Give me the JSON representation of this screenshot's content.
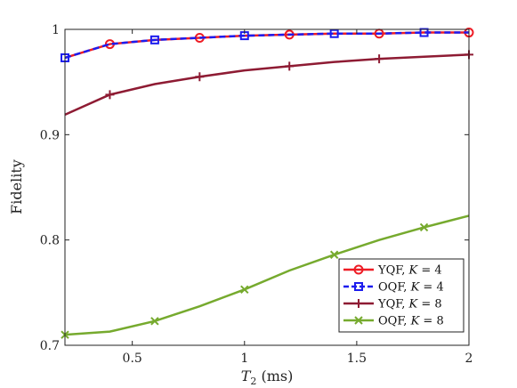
{
  "chart_data": {
    "type": "line",
    "xlabel": "T",
    "xlabel_sub": "2",
    "xlabel_unit": " (ms)",
    "ylabel": "Fidelity",
    "xlim": [
      0.2,
      2
    ],
    "ylim": [
      0.7,
      1
    ],
    "xticks": [
      0.5,
      1,
      1.5,
      2
    ],
    "xtick_labels": [
      "0.5",
      "1",
      "1.5",
      "2"
    ],
    "yticks": [
      0.7,
      0.8,
      0.9,
      1
    ],
    "ytick_labels": [
      "0.7",
      "0.8",
      "0.9",
      "1"
    ],
    "grid": false,
    "legend_position": "bottom-right",
    "series": [
      {
        "name_prefix": "YQF, ",
        "name_var": "K",
        "name_suffix": " = 4",
        "color": "#ee1c25",
        "marker": "circle",
        "dashed": false,
        "x": [
          0.2,
          0.4,
          0.6,
          0.8,
          1.0,
          1.2,
          1.4,
          1.6,
          1.8,
          2.0
        ],
        "y": [
          0.973,
          0.986,
          0.99,
          0.992,
          0.994,
          0.995,
          0.996,
          0.996,
          0.997,
          0.997
        ],
        "marker_x": [
          0.4,
          0.8,
          1.2,
          1.6,
          2.0
        ]
      },
      {
        "name_prefix": "OQF, ",
        "name_var": "K",
        "name_suffix": " = 4",
        "color": "#1c1cee",
        "marker": "square",
        "dashed": true,
        "x": [
          0.2,
          0.4,
          0.6,
          0.8,
          1.0,
          1.2,
          1.4,
          1.6,
          1.8,
          2.0
        ],
        "y": [
          0.973,
          0.986,
          0.99,
          0.992,
          0.994,
          0.995,
          0.996,
          0.996,
          0.997,
          0.997
        ],
        "marker_x": [
          0.2,
          0.6,
          1.0,
          1.4,
          1.8
        ]
      },
      {
        "name_prefix": "YQF, ",
        "name_var": "K",
        "name_suffix": " = 8",
        "color": "#8e1b33",
        "marker": "plus",
        "dashed": false,
        "x": [
          0.2,
          0.4,
          0.6,
          0.8,
          1.0,
          1.2,
          1.4,
          1.6,
          1.8,
          2.0
        ],
        "y": [
          0.919,
          0.938,
          0.948,
          0.955,
          0.961,
          0.965,
          0.969,
          0.972,
          0.974,
          0.976
        ],
        "marker_x": [
          0.4,
          0.8,
          1.2,
          1.6,
          2.0
        ]
      },
      {
        "name_prefix": "OQF, ",
        "name_var": "K",
        "name_suffix": " = 8",
        "color": "#76aa2e",
        "marker": "x",
        "dashed": false,
        "x": [
          0.2,
          0.4,
          0.6,
          0.8,
          1.0,
          1.2,
          1.4,
          1.6,
          1.8,
          2.0
        ],
        "y": [
          0.71,
          0.713,
          0.723,
          0.737,
          0.753,
          0.771,
          0.786,
          0.8,
          0.812,
          0.823
        ],
        "marker_x": [
          0.2,
          0.6,
          1.0,
          1.4,
          1.8
        ]
      }
    ]
  }
}
